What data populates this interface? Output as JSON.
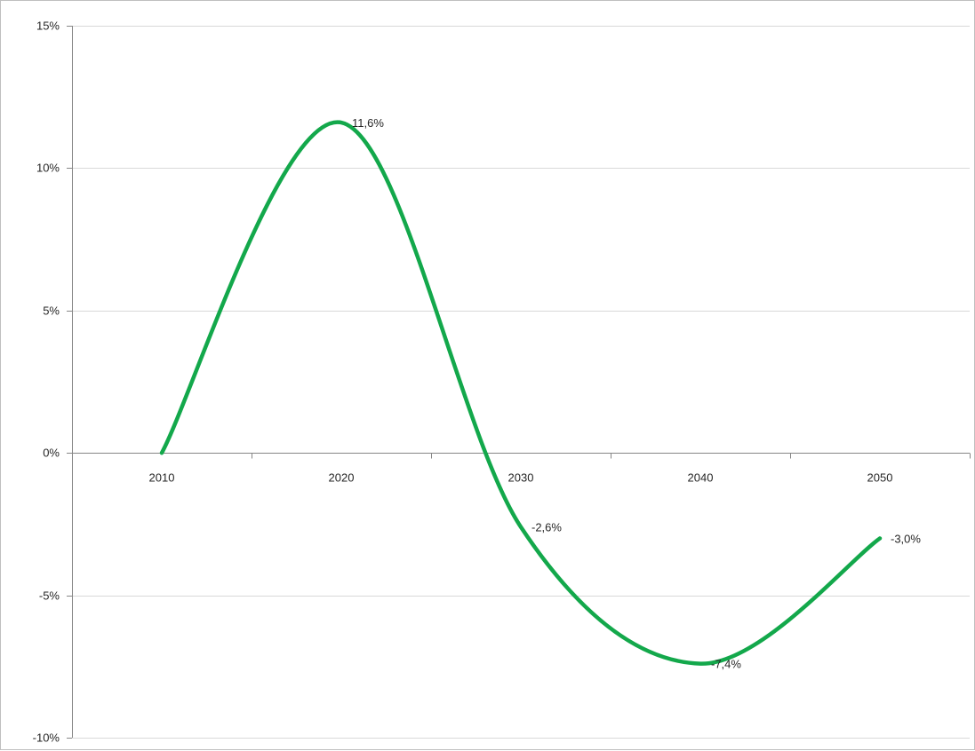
{
  "chart_data": {
    "type": "line",
    "smooth": true,
    "categories": [
      "2010",
      "2020",
      "2030",
      "2040",
      "2050"
    ],
    "series": [
      {
        "color": "#13a84b",
        "values": [
          0.0,
          11.6,
          -2.6,
          -7.4,
          -3.0
        ],
        "data_labels": [
          "",
          "11,6%",
          "-2,6%",
          "-7,4%",
          "-3,0%"
        ]
      }
    ],
    "ylim": [
      -10,
      15
    ],
    "y_ticks": [
      15,
      10,
      5,
      0,
      -5,
      -10
    ],
    "y_tick_labels": [
      "15%",
      "10%",
      "5%",
      "0%",
      "-5%",
      "-10%"
    ],
    "grid": "horizontal",
    "legend": "none",
    "title": "",
    "xlabel": "",
    "ylabel": ""
  }
}
